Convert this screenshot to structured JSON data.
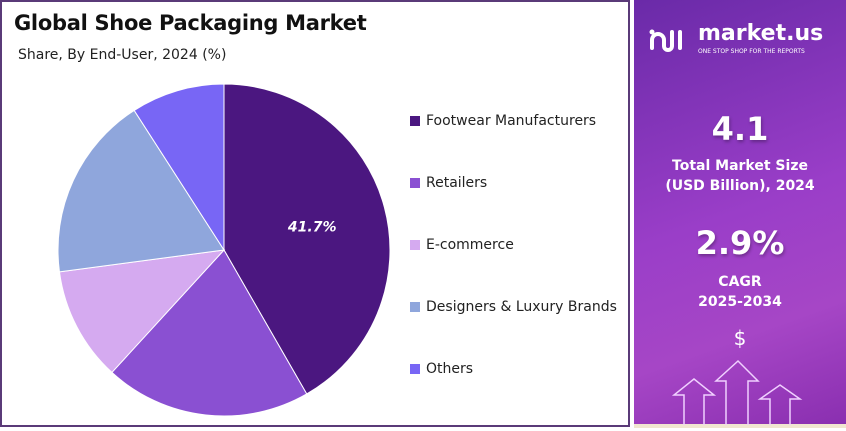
{
  "chart_data": {
    "type": "pie",
    "title": "Global Shoe Packaging Market",
    "subtitle": "Share, By End-User, 2024 (%)",
    "categories": [
      "Footwear Manufacturers",
      "Retailers",
      "E-commerce",
      "Designers & Luxury Brands",
      "Others"
    ],
    "values": [
      41.7,
      20.1,
      11.1,
      18.0,
      9.1
    ],
    "colors": [
      "#4b1780",
      "#8a50d2",
      "#d5aaf0",
      "#8fa6dc",
      "#7866f5"
    ],
    "data_labels": [
      "41.7%"
    ],
    "legend_position": "right"
  },
  "panel": {
    "brand": "market.us",
    "tagline": "ONE STOP SHOP FOR THE REPORTS",
    "market_size": "4.1",
    "market_size_label_1": "Total Market Size",
    "market_size_label_2": "(USD Billion), 2024",
    "cagr": "2.9%",
    "cagr_label_1": "CAGR",
    "cagr_label_2": "2025-2034",
    "dollar": "$"
  }
}
